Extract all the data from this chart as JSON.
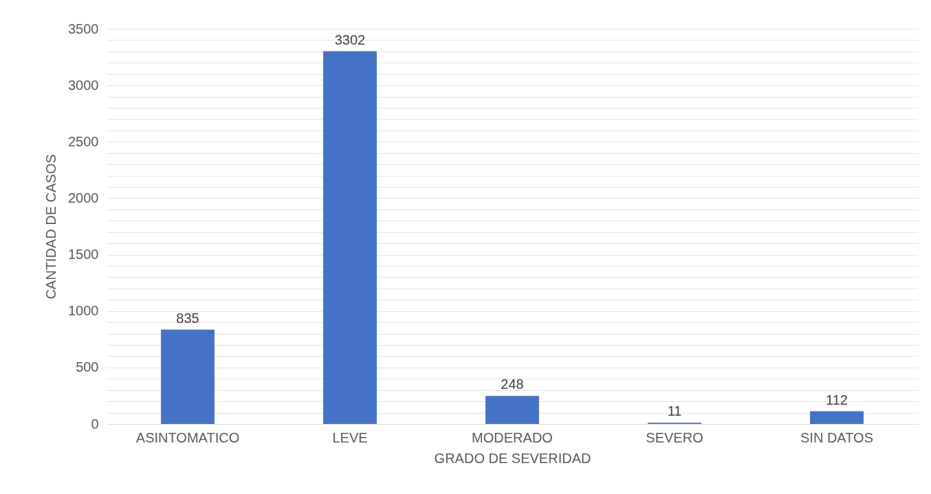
{
  "chart_data": {
    "type": "bar",
    "xlabel": "GRADO DE SEVERIDAD",
    "ylabel": "CANTIDAD DE CASOS",
    "categories": [
      "ASINTOMATICO",
      "LEVE",
      "MODERADO",
      "SEVERO",
      "SIN DATOS"
    ],
    "values": [
      835,
      3302,
      248,
      11,
      112
    ],
    "color": "#4472c4",
    "ylim": [
      0,
      3500
    ],
    "yticks": [
      0,
      {
        "value": 100,
        "label": null
      },
      {
        "value": 200,
        "label": null
      },
      {
        "value": 300,
        "label": null
      },
      {
        "value": 400,
        "label": null
      },
      500,
      {
        "value": 600,
        "label": null
      },
      {
        "value": 700,
        "label": null
      },
      {
        "value": 800,
        "label": null
      },
      {
        "value": 900,
        "label": null
      },
      1000,
      {
        "value": 1100,
        "label": null
      },
      {
        "value": 1200,
        "label": null
      },
      {
        "value": 1300,
        "label": null
      },
      {
        "value": 1400,
        "label": null
      },
      1500,
      {
        "value": 1600,
        "label": null
      },
      {
        "value": 1700,
        "label": null
      },
      {
        "value": 1800,
        "label": null
      },
      {
        "value": 1900,
        "label": null
      },
      2000,
      {
        "value": 2100,
        "label": null
      },
      {
        "value": 2200,
        "label": null
      },
      {
        "value": 2300,
        "label": null
      },
      {
        "value": 2400,
        "label": null
      },
      2500,
      {
        "value": 2600,
        "label": null
      },
      {
        "value": 2700,
        "label": null
      },
      {
        "value": 2800,
        "label": null
      },
      {
        "value": 2900,
        "label": null
      },
      3000,
      {
        "value": 3100,
        "label": null
      },
      {
        "value": 3200,
        "label": null
      },
      {
        "value": 3300,
        "label": null
      },
      {
        "value": 3400,
        "label": null
      },
      3500
    ],
    "grid": "y",
    "data_labels": true
  }
}
